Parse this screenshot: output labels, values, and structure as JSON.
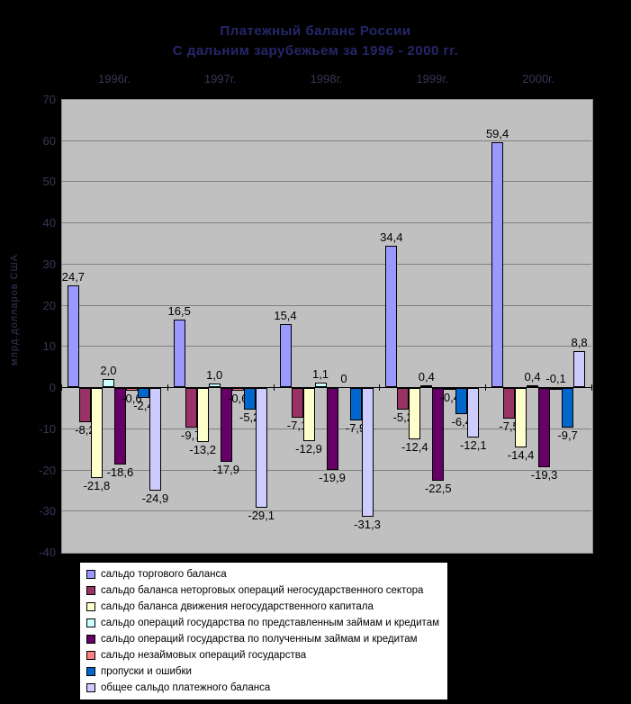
{
  "title": "Платежный баланс России",
  "subtitle": "С дальним зарубежьем за 1996 - 2000 гг.",
  "colors": {
    "page_bg": "#000000",
    "plot_bg": "#c0c0c0",
    "grid": "#808080",
    "axis": "#000000",
    "bar_border": "#000000",
    "data_label": "#000000",
    "ghost_text": "#3a3456",
    "title_text": "#26266a",
    "legend_bg": "#ffffff",
    "legend_border": "#000000",
    "legend_text": "#000000"
  },
  "chart_data": {
    "type": "bar",
    "title": "Платежный баланс России",
    "subtitle": "С дальним зарубежьем за 1996 - 2000 гг.",
    "ylabel": "млрд.долларов США",
    "xlabel": "",
    "ylim": [
      -40,
      70
    ],
    "ytick_step": 10,
    "yticks": [
      "70",
      "60",
      "50",
      "40",
      "30",
      "20",
      "10",
      "0",
      "-10",
      "-20",
      "-30",
      "-40"
    ],
    "grid": true,
    "legend_position": "bottom",
    "categories": [
      "1996г.",
      "1997г.",
      "1998г.",
      "1999г.",
      "2000г."
    ],
    "series": [
      {
        "name": "сальдо торгового баланса",
        "color": "#9999FF",
        "values": [
          24.7,
          16.5,
          15.4,
          34.4,
          59.4
        ],
        "labels": [
          "24,7",
          "16,5",
          "15,4",
          "34,4",
          "59,4"
        ]
      },
      {
        "name": "сальдо баланса неторговых операций негосударственного сектора",
        "color": "#993366",
        "values": [
          -8.2,
          -9.7,
          -7.1,
          -5.2,
          -7.5
        ],
        "labels": [
          "-8,2",
          "-9,7",
          "-7,1",
          "-5,2",
          "-7,5"
        ]
      },
      {
        "name": "сальдо баланса движения негосударственного капитала",
        "color": "#FFFFCC",
        "values": [
          -21.8,
          -13.2,
          -12.9,
          -12.4,
          -14.4
        ],
        "labels": [
          "-21,8",
          "-13,2",
          "-12,9",
          "-12,4",
          "-14,4"
        ]
      },
      {
        "name": "сальдо операций государства по представленным займам и кредитам",
        "color": "#CCFFFF",
        "values": [
          2.0,
          1.0,
          1.1,
          0.4,
          0.4
        ],
        "labels": [
          "2,0",
          "1,0",
          "1,1",
          "0,4",
          "0,4"
        ]
      },
      {
        "name": "сальдо операций государства по полученным займам и кредитам",
        "color": "#660066",
        "values": [
          -18.6,
          -17.9,
          -19.9,
          -22.5,
          -19.3
        ],
        "labels": [
          "-18,6",
          "-17,9",
          "-19,9",
          "-22,5",
          "-19,3"
        ]
      },
      {
        "name": "сальдо незаймовых операций государства",
        "color": "#FF8080",
        "values": [
          -0.6,
          -0.6,
          0,
          -0.4,
          -0.1
        ],
        "labels": [
          "-0,6",
          "-0,6",
          "0",
          "-0,4",
          "-0,1"
        ]
      },
      {
        "name": "пропуски и ошибки",
        "color": "#0066CC",
        "values": [
          -2.4,
          -5.2,
          -7.9,
          -6.4,
          -9.7
        ],
        "labels": [
          "-2,4",
          "-5,2",
          "-7,9",
          "-6,4",
          "-9,7"
        ]
      },
      {
        "name": "общее сальдо платежного баланса",
        "color": "#CCCCFF",
        "values": [
          -24.9,
          -29.1,
          -31.3,
          -12.1,
          8.8
        ],
        "labels": [
          "-24,9",
          "-29,1",
          "-31,3",
          "-12,1",
          "8,8"
        ]
      }
    ]
  }
}
